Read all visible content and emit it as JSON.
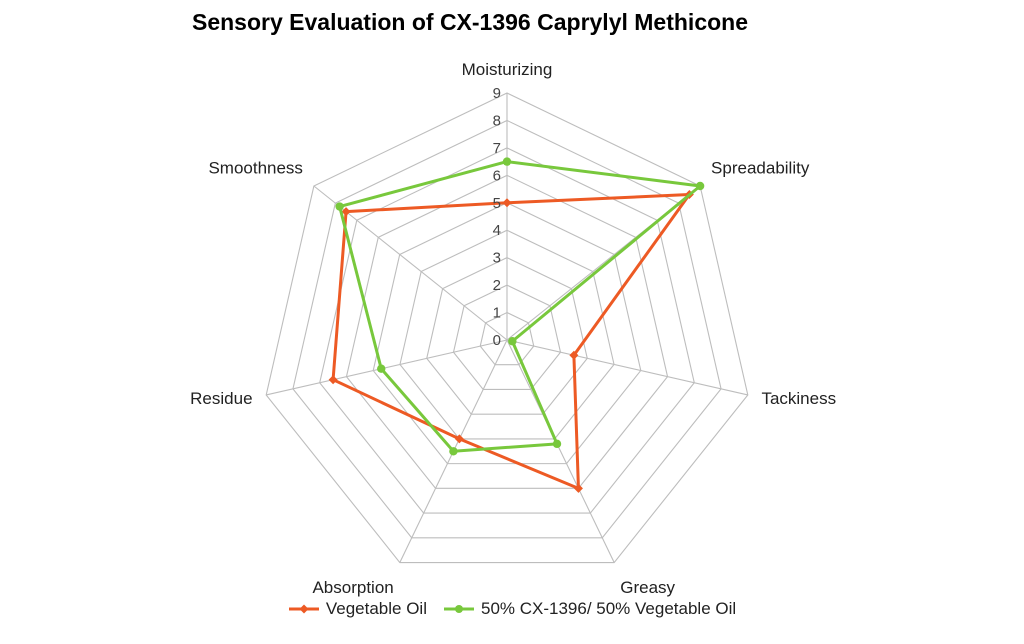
{
  "chart_data": {
    "type": "radar",
    "title": "Sensory Evaluation of CX-1396  Caprylyl Methicone",
    "categories": [
      "Moisturizing",
      "Spreadability",
      "Tackiness",
      "Greasy",
      "Absorption",
      "Residue",
      "Smoothness"
    ],
    "rlim": [
      0,
      9
    ],
    "ticks": [
      "0",
      "1",
      "2",
      "3",
      "4",
      "5",
      "6",
      "7",
      "8",
      "9"
    ],
    "grid": true,
    "legend_position": "bottom",
    "series": [
      {
        "name": "Vegetable Oil",
        "color": "#ed5a24",
        "values": [
          5,
          8.5,
          2.5,
          6,
          4,
          6.5,
          7.5
        ]
      },
      {
        "name": "50% CX-1396/ 50% Vegetable Oil",
        "color": "#78c83c",
        "values": [
          6.5,
          9,
          0.2,
          4.2,
          4.5,
          4.7,
          7.8
        ]
      }
    ]
  }
}
